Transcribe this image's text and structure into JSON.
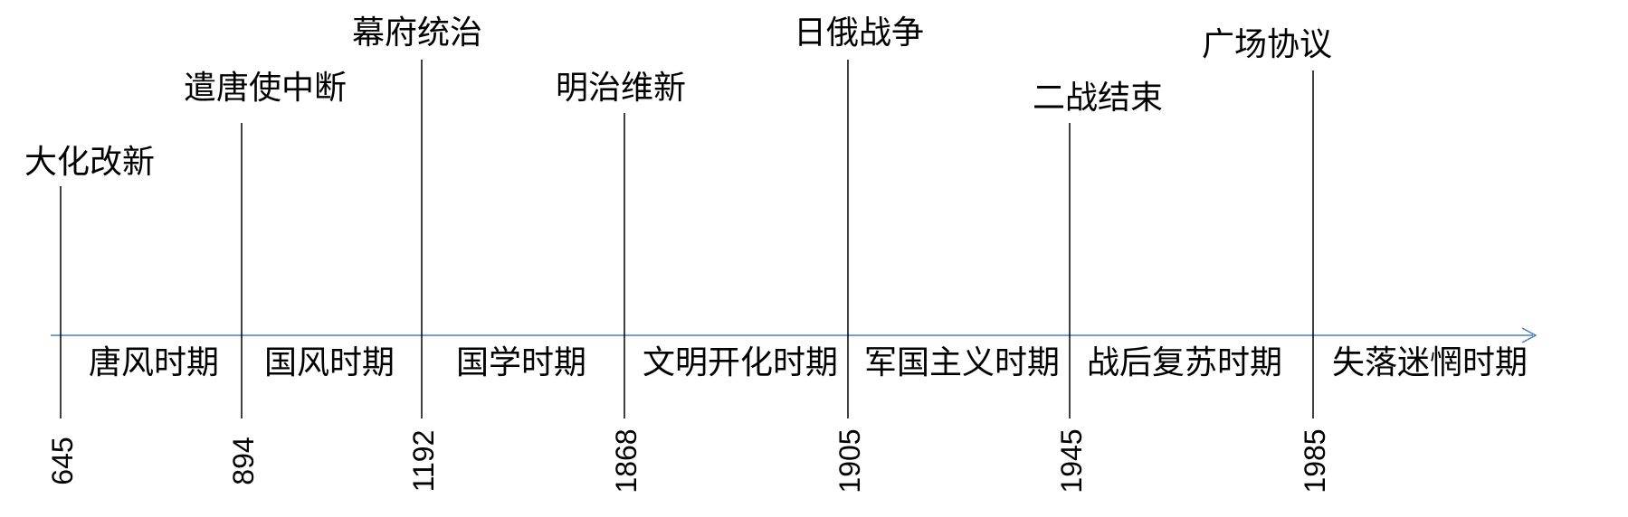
{
  "timeline": {
    "axis_color": "#4a7ebb",
    "line_color": "#000000",
    "events": [
      {
        "year": "645",
        "label": "大化改新"
      },
      {
        "year": "894",
        "label": "遣唐使中断"
      },
      {
        "year": "1192",
        "label": "幕府统治"
      },
      {
        "year": "1868",
        "label": "明治维新"
      },
      {
        "year": "1905",
        "label": "日俄战争"
      },
      {
        "year": "1945",
        "label": "二战结束"
      },
      {
        "year": "1985",
        "label": "广场协议"
      }
    ],
    "periods": [
      {
        "label": "唐风时期"
      },
      {
        "label": "国风时期"
      },
      {
        "label": "国学时期"
      },
      {
        "label": "文明开化时期"
      },
      {
        "label": "军国主义时期"
      },
      {
        "label": "战后复苏时期"
      },
      {
        "label": "失落迷惘时期"
      }
    ]
  }
}
